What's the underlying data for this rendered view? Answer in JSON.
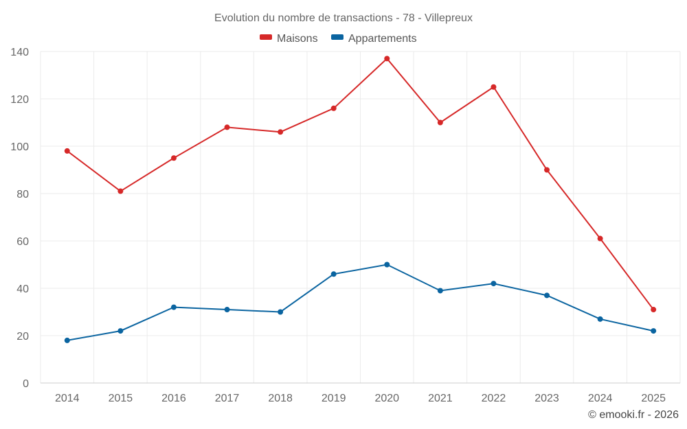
{
  "chart_data": {
    "type": "line",
    "title": "Evolution du nombre de transactions - 78 - Villepreux",
    "categories": [
      "2014",
      "2015",
      "2016",
      "2017",
      "2018",
      "2019",
      "2020",
      "2021",
      "2022",
      "2023",
      "2024",
      "2025"
    ],
    "series": [
      {
        "name": "Maisons",
        "color": "#d62828",
        "values": [
          98,
          81,
          95,
          108,
          106,
          116,
          137,
          110,
          125,
          90,
          61,
          31
        ]
      },
      {
        "name": "Appartements",
        "color": "#0a64a0",
        "values": [
          18,
          22,
          32,
          31,
          30,
          46,
          50,
          39,
          42,
          37,
          27,
          22
        ]
      }
    ],
    "ylim": [
      0,
      140
    ],
    "yticks": [
      0,
      20,
      40,
      60,
      80,
      100,
      120,
      140
    ],
    "grid": true,
    "legend": "top-center",
    "xlabel": "",
    "ylabel": ""
  },
  "credit": "© emooki.fr - 2026"
}
